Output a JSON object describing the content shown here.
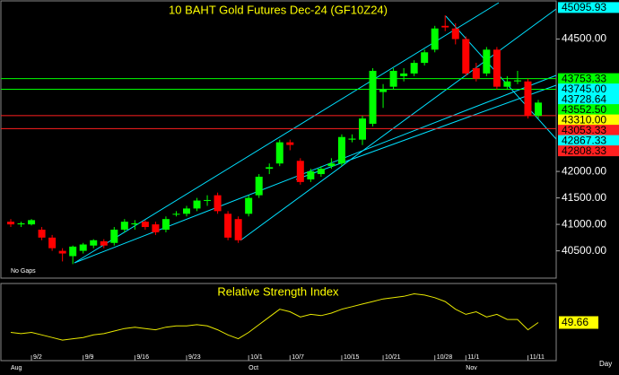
{
  "chart_data": {
    "type": "candlestick",
    "title": "10 BAHT Gold Futures Dec-24 (GF10Z24)",
    "categories": [
      null,
      null,
      "9/2",
      null,
      null,
      null,
      null,
      "9/9",
      null,
      null,
      null,
      null,
      "9/16",
      null,
      null,
      null,
      null,
      "9/23",
      null,
      null,
      null,
      null,
      null,
      "10/1",
      null,
      null,
      null,
      "10/7",
      null,
      null,
      null,
      null,
      "10/15",
      null,
      null,
      null,
      "10/21",
      null,
      null,
      null,
      null,
      "10/28",
      null,
      null,
      "11/1",
      null,
      null,
      null,
      null,
      null,
      "11/11",
      null
    ],
    "months": [
      "Aug",
      null,
      null,
      null,
      null,
      null,
      null,
      null,
      null,
      null,
      null,
      null,
      null,
      null,
      null,
      null,
      null,
      null,
      null,
      null,
      null,
      null,
      null,
      "Oct",
      null,
      null,
      null,
      null,
      null,
      null,
      null,
      null,
      null,
      null,
      null,
      null,
      null,
      null,
      null,
      null,
      null,
      null,
      null,
      null,
      "Nov",
      null,
      null,
      null,
      null,
      null,
      null,
      null
    ],
    "open": [
      41050,
      41000,
      41000,
      40900,
      40750,
      40500,
      40400,
      40500,
      40600,
      40680,
      40650,
      40900,
      41000,
      41050,
      41000,
      40900,
      41200,
      41200,
      41300,
      41450,
      41550,
      41200,
      41100,
      41200,
      41550,
      42050,
      42150,
      42550,
      42200,
      41850,
      41950,
      42100,
      42150,
      42600,
      42600,
      42900,
      43500,
      43600,
      43800,
      43850,
      44050,
      44300,
      44750,
      44700,
      44500,
      43950,
      43850,
      44300,
      43600,
      43700,
      43700,
      43050
    ],
    "high": [
      41100,
      41050,
      41100,
      40950,
      40800,
      40550,
      40600,
      40650,
      40720,
      40720,
      40950,
      41100,
      41080,
      41080,
      41050,
      41150,
      41250,
      41350,
      41500,
      41550,
      41600,
      41250,
      41150,
      41550,
      41950,
      42150,
      42600,
      42600,
      42250,
      42050,
      42100,
      42250,
      42700,
      42700,
      43050,
      43950,
      43650,
      43950,
      43950,
      44100,
      44300,
      44750,
      44950,
      44800,
      44550,
      44050,
      44350,
      44350,
      43800,
      43900,
      43750,
      43350
    ],
    "low": [
      40950,
      40950,
      40980,
      40700,
      40500,
      40300,
      40250,
      40450,
      40550,
      40550,
      40600,
      40850,
      40900,
      40900,
      40800,
      40850,
      41150,
      41150,
      41250,
      41350,
      41200,
      40700,
      40650,
      41150,
      41500,
      41950,
      42100,
      42400,
      41750,
      41800,
      41900,
      42050,
      42100,
      42550,
      42500,
      42850,
      43200,
      43550,
      43700,
      43800,
      44000,
      44250,
      44650,
      44400,
      43800,
      43700,
      43800,
      43550,
      43550,
      43650,
      43000,
      43000
    ],
    "close": [
      41000,
      41020,
      41080,
      40750,
      40550,
      40450,
      40580,
      40620,
      40700,
      40600,
      40900,
      41050,
      41020,
      40950,
      40850,
      41100,
      41200,
      41300,
      41450,
      41460,
      41250,
      40750,
      40700,
      41500,
      41900,
      42080,
      42550,
      42500,
      41800,
      42000,
      42050,
      42150,
      42650,
      42620,
      43000,
      43900,
      43550,
      43900,
      43850,
      44050,
      44250,
      44700,
      44720,
      44500,
      43850,
      43750,
      44300,
      43600,
      43700,
      43720,
      43050,
      43300
    ],
    "up_color": "#00ff00",
    "down_color": "#ff0000",
    "ylim": [
      39985,
      45221
    ],
    "yticks": [
      {
        "value": 44500,
        "label": "44500.00"
      },
      {
        "value": 42000,
        "label": "42000.00"
      },
      {
        "value": 41500,
        "label": "41500.00"
      },
      {
        "value": 41000,
        "label": "41000.00"
      },
      {
        "value": 40500,
        "label": "40500.00"
      }
    ],
    "levels": [
      {
        "value": 45095.93,
        "label": "45095.93",
        "color": "#00ffff",
        "line": false
      },
      {
        "value": 43753.33,
        "label": "43753.33",
        "color": "#00ff00",
        "line": true
      },
      {
        "value": 43745,
        "label": "43745.00",
        "color": "#00ffff",
        "line": false
      },
      {
        "value": 43728.64,
        "label": "43728.64",
        "color": "#00ffff",
        "line": false
      },
      {
        "value": 43552.5,
        "label": "43552.50",
        "color": "#00ff00",
        "line": true
      },
      {
        "value": 43310,
        "label": "43310.00",
        "color": "#ffff00",
        "line": false
      },
      {
        "value": 43053.33,
        "label": "43053.33",
        "color": "#ff2020",
        "line": true
      },
      {
        "value": 42867.33,
        "label": "42867.33",
        "color": "#00ffff",
        "line": false
      },
      {
        "value": 42808.33,
        "label": "42808.33",
        "color": "#ff2020",
        "line": true
      }
    ],
    "note": "No Gaps",
    "x_unit": "Day",
    "rsi": {
      "title": "Relative Strength Index",
      "color": "#e8e800",
      "ylim": [
        20,
        80
      ],
      "values": [
        42,
        41,
        42,
        40,
        38,
        36,
        37,
        38,
        40,
        41,
        43,
        45,
        46,
        45,
        44,
        46,
        47,
        47,
        48,
        47,
        44,
        40,
        37,
        42,
        48,
        54,
        60,
        58,
        54,
        56,
        55,
        57,
        60,
        62,
        64,
        66,
        68,
        69,
        70,
        72,
        71,
        69,
        66,
        60,
        56,
        58,
        54,
        56,
        52,
        52,
        44,
        49.66
      ]
    }
  }
}
